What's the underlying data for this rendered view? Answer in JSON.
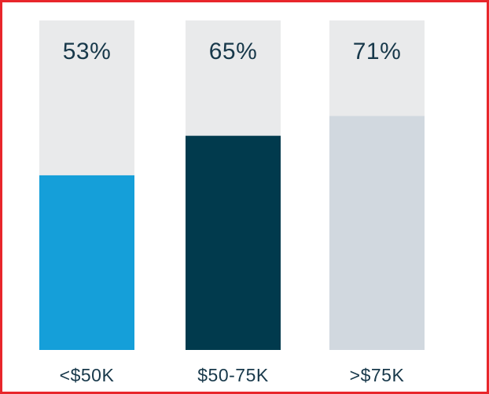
{
  "chart_data": {
    "type": "bar",
    "categories": [
      "<$50K",
      "$50-75K",
      ">$75K"
    ],
    "values": [
      53,
      65,
      71
    ],
    "value_labels": [
      "53%",
      "65%",
      "71%"
    ],
    "ylim": [
      0,
      100
    ],
    "grid": false,
    "legend": "none",
    "bar_colors": [
      "#159fd9",
      "#013a4d",
      "#d1d8df"
    ],
    "track_color": "#e9eaeb",
    "text_color": "#17384a"
  }
}
